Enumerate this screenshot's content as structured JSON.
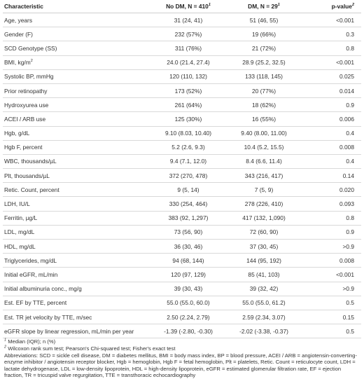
{
  "header": {
    "characteristic": "Characteristic",
    "no_dm": "No DM, N = 410",
    "dm": "DM, N = 29",
    "pvalue": "p-value",
    "sup1": "1",
    "sup2": "2"
  },
  "rows": [
    {
      "label": "Age, years",
      "no_dm": "31 (24, 41)",
      "dm": "51 (46, 55)",
      "p": "<0.001"
    },
    {
      "label": "Gender (F)",
      "no_dm": "232 (57%)",
      "dm": "19 (66%)",
      "p": "0.3"
    },
    {
      "label": "SCD Genotype (SS)",
      "no_dm": "311 (76%)",
      "dm": "21 (72%)",
      "p": "0.8"
    },
    {
      "label": "BMI, kg/m",
      "label_sup": "2",
      "no_dm": "24.0 (21.4, 27.4)",
      "dm": "28.9 (25.2, 32.5)",
      "p": "<0.001"
    },
    {
      "label": "Systolic BP, mmHg",
      "no_dm": "120 (110, 132)",
      "dm": "133 (118, 145)",
      "p": "0.025"
    },
    {
      "label": "Prior retinopathy",
      "no_dm": "173 (52%)",
      "dm": "20 (77%)",
      "p": "0.014"
    },
    {
      "label": "Hydroxyurea use",
      "no_dm": "261 (64%)",
      "dm": "18 (62%)",
      "p": "0.9"
    },
    {
      "label": "ACEI / ARB use",
      "no_dm": "125 (30%)",
      "dm": "16 (55%)",
      "p": "0.006"
    },
    {
      "label": "Hgb, g/dL",
      "no_dm": "9.10 (8.03, 10.40)",
      "dm": "9.40 (8.00, 11.00)",
      "p": "0.4"
    },
    {
      "label": "Hgb F, percent",
      "no_dm": "5.2 (2.6, 9.3)",
      "dm": "10.4 (5.2, 15.5)",
      "p": "0.008"
    },
    {
      "label": "WBC, thousands/µL",
      "no_dm": "9.4 (7.1, 12.0)",
      "dm": "8.4 (6.6, 11.4)",
      "p": "0.4"
    },
    {
      "label": "Plt, thousands/µL",
      "no_dm": "372 (270, 478)",
      "dm": "343 (216, 417)",
      "p": "0.14"
    },
    {
      "label": "Retic. Count, percent",
      "no_dm": "9 (5, 14)",
      "dm": "7 (5, 9)",
      "p": "0.020"
    },
    {
      "label": "LDH, IU/L",
      "no_dm": "330 (254, 464)",
      "dm": "278 (226, 410)",
      "p": "0.093"
    },
    {
      "label": "Ferritin, µg/L",
      "no_dm": "383 (92, 1,297)",
      "dm": "417 (132, 1,090)",
      "p": "0.8"
    },
    {
      "label": "LDL, mg/dL",
      "no_dm": "73 (56, 90)",
      "dm": "72 (60, 90)",
      "p": "0.9"
    },
    {
      "label": "HDL, mg/dL",
      "no_dm": "36 (30, 46)",
      "dm": "37 (30, 45)",
      "p": ">0.9"
    },
    {
      "label": "Triglycerides, mg/dL",
      "no_dm": "94 (68, 144)",
      "dm": "144 (95, 192)",
      "p": "0.008"
    },
    {
      "label": "Initial eGFR, mL/min",
      "no_dm": "120 (97, 129)",
      "dm": "85 (41, 103)",
      "p": "<0.001"
    },
    {
      "label": "Initial albuminuria conc., mg/g",
      "no_dm": "39 (30, 43)",
      "dm": "39 (32, 42)",
      "p": ">0.9"
    },
    {
      "label": "Est. EF by TTE, percent",
      "no_dm": "55.0 (55.0, 60.0)",
      "dm": "55.0 (55.0, 61.2)",
      "p": "0.5"
    },
    {
      "label": "Est. TR jet velocity by TTE, m/sec",
      "no_dm": "2.50 (2.24, 2.79)",
      "dm": "2.59 (2.34, 3.07)",
      "p": "0.15"
    },
    {
      "label": "eGFR slope by linear regression, mL/min per year",
      "no_dm": "-1.39 (-2.80, -0.30)",
      "dm": "-2.02 (-3.38, -0.37)",
      "p": "0.5"
    }
  ],
  "footnotes": {
    "fn1_sup": "1",
    "fn1": "Median (IQR); n (%)",
    "fn2_sup": "2",
    "fn2": "Wilcoxon rank sum test; Pearson's Chi-squared test; Fisher's exact test",
    "abbreviations": "Abbreviations: SCD = sickle cell disease, DM = diabetes mellitus, BMI = body mass index, BP = blood pressure, ACEI / ARB = angiotensin-converting-enzyme inhibitor / angiotensin receptor blocker, Hgb = hemoglobin, Hgb F = fetal hemoglobin, Plt = platelets, Retic. Count = reticulocyte count, LDH = lactate dehydrogenase, LDL = low-density lipoprotein, HDL = high-density lipoprotein, eGFR = estimated glomerular filtration rate, EF = ejection fraction, TR = tricuspid valve regurgitation, TTE = transthoracic echocardiography"
  }
}
